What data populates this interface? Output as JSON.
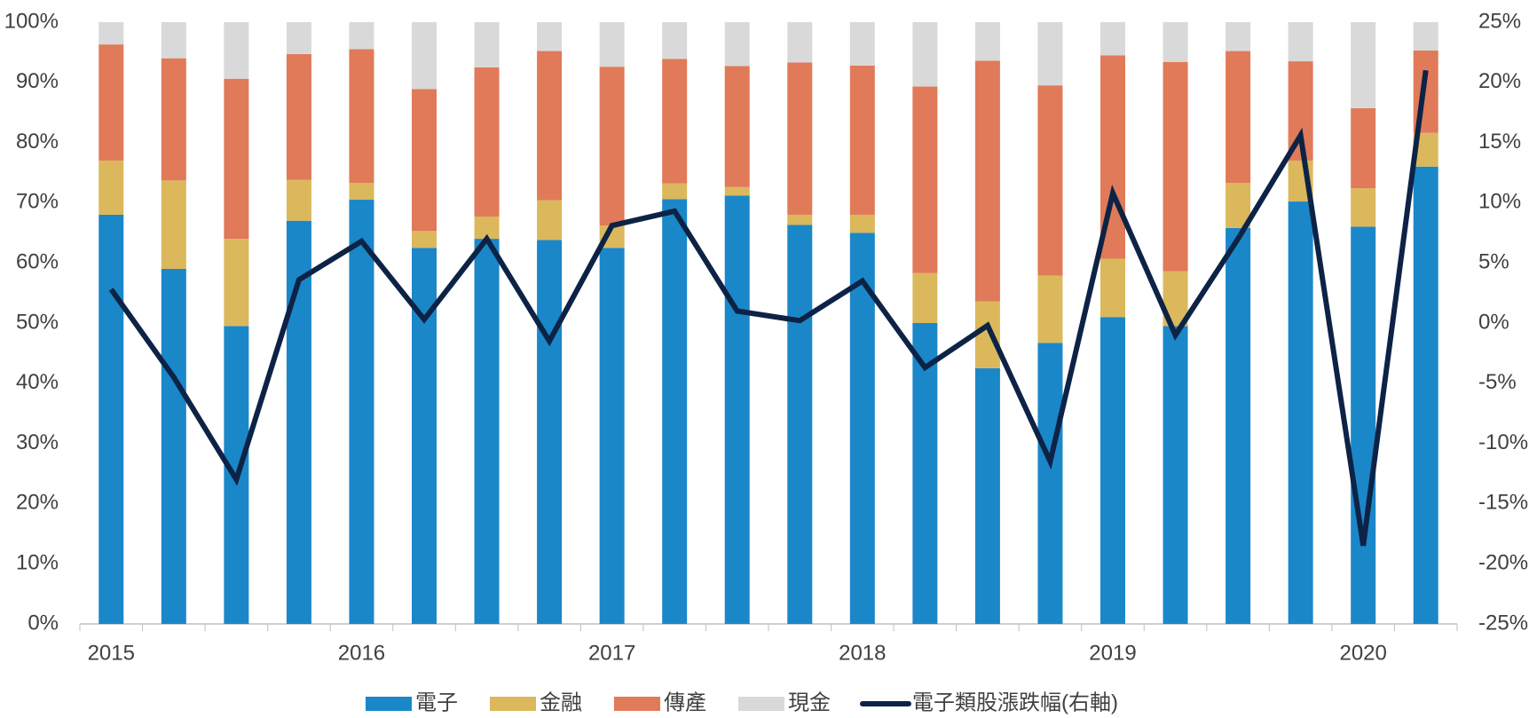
{
  "chart_data": {
    "type": "bar",
    "stacked": true,
    "categories": [
      "2015",
      null,
      null,
      null,
      "2016",
      null,
      null,
      null,
      "2017",
      null,
      null,
      null,
      "2018",
      null,
      null,
      null,
      "2019",
      null,
      null,
      null,
      "2020",
      null
    ],
    "series": [
      {
        "name": "電子",
        "color": "#1a87c9",
        "values": [
          68,
          59,
          49.5,
          67,
          70.5,
          62.5,
          64,
          63.8,
          62.5,
          70.6,
          71.2,
          66.3,
          65,
          50,
          42.5,
          46.7,
          51,
          49.5,
          65.8,
          70.2,
          66,
          76
        ]
      },
      {
        "name": "金融",
        "color": "#dbb85c",
        "values": [
          9,
          14.7,
          14.5,
          6.8,
          2.8,
          2.8,
          3.7,
          6.6,
          3.7,
          2.6,
          1.4,
          1.7,
          3,
          8.3,
          11.1,
          11.2,
          9.7,
          9.1,
          7.5,
          6.8,
          6.4,
          5.6
        ]
      },
      {
        "name": "傳產",
        "color": "#e07a58",
        "values": [
          19.3,
          20.3,
          26.6,
          20.9,
          22.2,
          23.6,
          24.8,
          24.8,
          26.4,
          20.7,
          20.1,
          25.3,
          24.8,
          31,
          40,
          31.6,
          33.8,
          34.8,
          21.9,
          16.5,
          13.3,
          13.7
        ]
      },
      {
        "name": "現金",
        "color": "#d9d9d9",
        "values": [
          3.7,
          6,
          9.4,
          5.3,
          4.5,
          11.1,
          7.5,
          4.8,
          7.4,
          6.1,
          7.3,
          6.7,
          7.2,
          10.7,
          6.4,
          10.5,
          5.5,
          6.6,
          4.8,
          6.5,
          14.3,
          4.7
        ]
      },
      {
        "name": "電子類股漲跌幅(右軸)",
        "color": "#0d2346",
        "type": "line",
        "axis": "y2",
        "values": [
          2.8,
          -4.5,
          -13,
          3.6,
          6.8,
          0.3,
          7,
          -1.5,
          8.1,
          9.3,
          1,
          0.2,
          3.5,
          -3.7,
          -0.2,
          -11.5,
          10.8,
          -1,
          7,
          15.6,
          -18.5,
          21
        ]
      }
    ],
    "ylim": [
      0,
      100
    ],
    "yticks": [
      {
        "value": 0,
        "label": "0%"
      },
      {
        "value": 10,
        "label": "10%"
      },
      {
        "value": 20,
        "label": "20%"
      },
      {
        "value": 30,
        "label": "30%"
      },
      {
        "value": 40,
        "label": "40%"
      },
      {
        "value": 50,
        "label": "50%"
      },
      {
        "value": 60,
        "label": "60%"
      },
      {
        "value": 70,
        "label": "70%"
      },
      {
        "value": 80,
        "label": "80%"
      },
      {
        "value": 90,
        "label": "90%"
      },
      {
        "value": 100,
        "label": "100%"
      }
    ],
    "y2lim": [
      -25,
      25
    ],
    "y2ticks": [
      {
        "value": -25,
        "label": "-25%"
      },
      {
        "value": -20,
        "label": "-20%"
      },
      {
        "value": -15,
        "label": "-15%"
      },
      {
        "value": -10,
        "label": "-10%"
      },
      {
        "value": -5,
        "label": "-5%"
      },
      {
        "value": 0,
        "label": "0%"
      },
      {
        "value": 5,
        "label": "5%"
      },
      {
        "value": 10,
        "label": "10%"
      },
      {
        "value": 15,
        "label": "15%"
      },
      {
        "value": 20,
        "label": "20%"
      },
      {
        "value": 25,
        "label": "25%"
      }
    ],
    "legend": "bottom",
    "grid": false
  }
}
